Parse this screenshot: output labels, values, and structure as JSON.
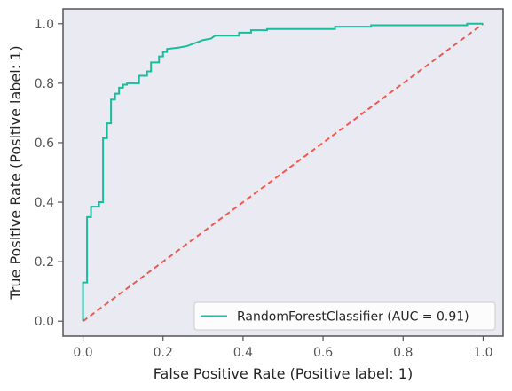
{
  "chart_data": {
    "type": "line",
    "title": "",
    "xlabel": "False Positive Rate (Positive label: 1)",
    "ylabel": "True Positive Rate (Positive label: 1)",
    "xlim": [
      -0.05,
      1.05
    ],
    "ylim": [
      -0.05,
      1.05
    ],
    "xticks": [
      0.0,
      0.2,
      0.4,
      0.6,
      0.8,
      1.0
    ],
    "yticks": [
      0.0,
      0.2,
      0.4,
      0.6,
      0.8,
      1.0
    ],
    "xtick_labels": [
      "0.0",
      "0.2",
      "0.4",
      "0.6",
      "0.8",
      "1.0"
    ],
    "ytick_labels": [
      "0.0",
      "0.2",
      "0.4",
      "0.6",
      "0.8",
      "1.0"
    ],
    "grid": false,
    "legend_position": "lower-right",
    "series": [
      {
        "name": "RandomForestClassifier (AUC = 0.91)",
        "color": "#1abc9c",
        "style": "solid",
        "x": [
          0.0,
          0.0,
          0.01,
          0.01,
          0.02,
          0.02,
          0.04,
          0.04,
          0.05,
          0.05,
          0.06,
          0.06,
          0.07,
          0.07,
          0.08,
          0.08,
          0.09,
          0.09,
          0.1,
          0.1,
          0.11,
          0.11,
          0.14,
          0.14,
          0.16,
          0.16,
          0.17,
          0.17,
          0.19,
          0.19,
          0.2,
          0.2,
          0.21,
          0.21,
          0.24,
          0.26,
          0.27,
          0.28,
          0.29,
          0.3,
          0.32,
          0.33,
          0.39,
          0.39,
          0.42,
          0.42,
          0.46,
          0.46,
          0.63,
          0.63,
          0.72,
          0.72,
          0.96,
          0.96,
          1.0
        ],
        "y": [
          0.0,
          0.13,
          0.13,
          0.35,
          0.35,
          0.385,
          0.385,
          0.4,
          0.4,
          0.615,
          0.615,
          0.665,
          0.665,
          0.745,
          0.745,
          0.765,
          0.765,
          0.785,
          0.785,
          0.795,
          0.795,
          0.8,
          0.8,
          0.825,
          0.825,
          0.84,
          0.84,
          0.87,
          0.87,
          0.89,
          0.89,
          0.905,
          0.905,
          0.915,
          0.92,
          0.925,
          0.93,
          0.935,
          0.94,
          0.945,
          0.95,
          0.96,
          0.96,
          0.97,
          0.97,
          0.978,
          0.978,
          0.982,
          0.982,
          0.99,
          0.99,
          0.995,
          0.995,
          1.0,
          1.0
        ]
      },
      {
        "name": "",
        "color": "#ee5a52",
        "style": "dashed",
        "x": [
          0.0,
          1.0
        ],
        "y": [
          0.0,
          1.0
        ]
      }
    ],
    "legend": [
      {
        "label": "RandomForestClassifier (AUC = 0.91)",
        "color": "#1abc9c"
      }
    ],
    "colors": {
      "plot_background": "#eaeaf2",
      "axes_edge": "#555555"
    }
  }
}
